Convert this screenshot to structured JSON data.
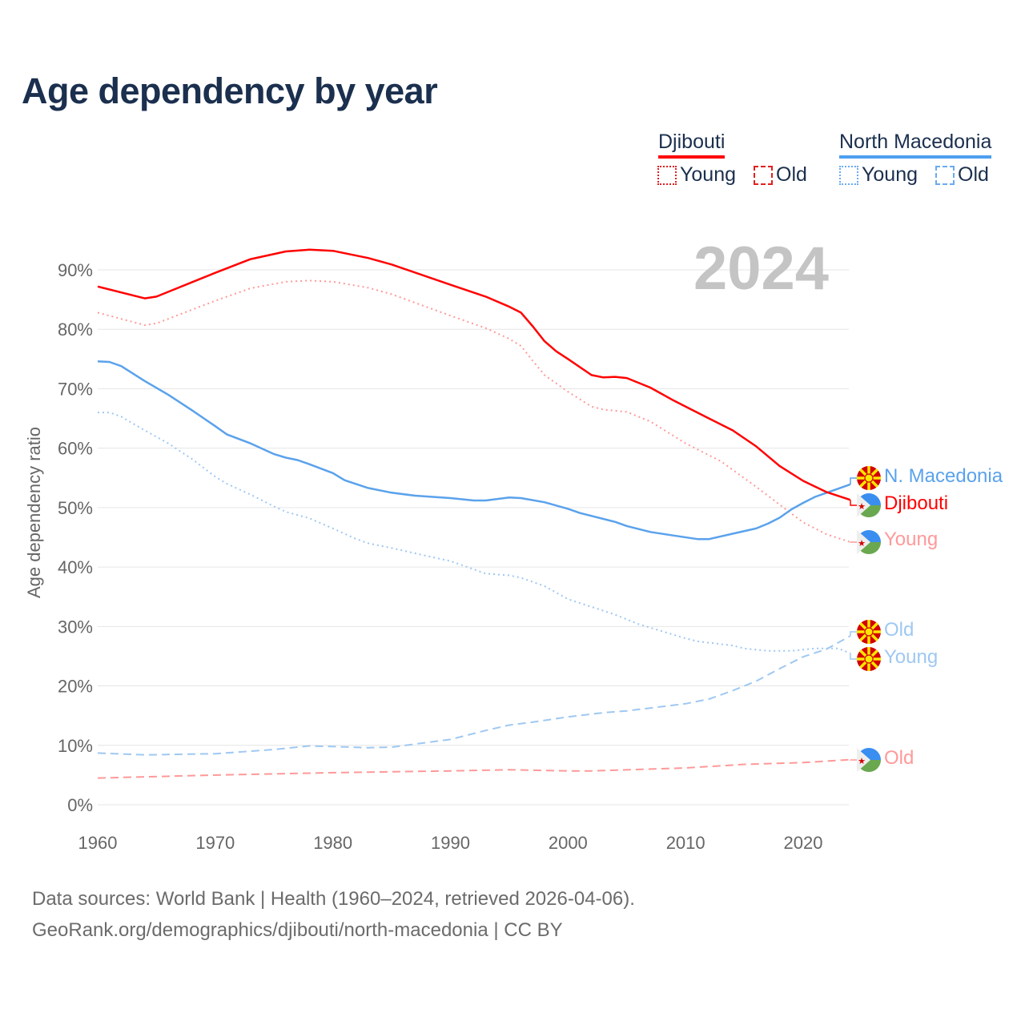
{
  "title": "Age dependency by year",
  "year_badge": "2024",
  "legend": {
    "groups": [
      {
        "name": "Djibouti",
        "color": "#ff0000",
        "young": "Young",
        "old": "Old"
      },
      {
        "name": "North Macedonia",
        "color": "#4e9ff0",
        "young": "Young",
        "old": "Old"
      }
    ]
  },
  "end_labels": {
    "nmk_total": "N. Macedonia",
    "dji_total": "Djibouti",
    "dji_young": "Young",
    "nmk_old": "Old",
    "nmk_young": "Young",
    "dji_old": "Old"
  },
  "source_line1": "Data sources: World Bank | Health (1960–2024, retrieved 2026-04-06).",
  "source_line2": "GeoRank.org/demographics/djibouti/north-macedonia | CC BY",
  "chart_data": {
    "type": "line",
    "title": "Age dependency by year",
    "xlabel": "",
    "ylabel": "Age dependency ratio",
    "xlim": [
      1960,
      2024
    ],
    "ylim": [
      0,
      90
    ],
    "xticks": [
      "1960",
      "1970",
      "1980",
      "1990",
      "2000",
      "2010",
      "2020"
    ],
    "yticks": [
      "0%",
      "10%",
      "20%",
      "30%",
      "40%",
      "50%",
      "60%",
      "70%",
      "80%",
      "90%"
    ],
    "grid": true,
    "legend": "top-right",
    "series": [
      {
        "name": "Djibouti",
        "key": "dji_total",
        "color": "#ff0000",
        "style": "solid",
        "points": [
          [
            1960,
            87.2
          ],
          [
            1964,
            85.2
          ],
          [
            1965,
            85.5
          ],
          [
            1970,
            89.5
          ],
          [
            1973,
            91.8
          ],
          [
            1976,
            93.1
          ],
          [
            1978,
            93.4
          ],
          [
            1980,
            93.2
          ],
          [
            1983,
            92.0
          ],
          [
            1985,
            90.9
          ],
          [
            1990,
            87.5
          ],
          [
            1993,
            85.5
          ],
          [
            1995,
            83.8
          ],
          [
            1996,
            82.8
          ],
          [
            1997,
            80.5
          ],
          [
            1998,
            78
          ],
          [
            1999,
            76.3
          ],
          [
            2000,
            75
          ],
          [
            2002,
            72.3
          ],
          [
            2003,
            71.9
          ],
          [
            2004,
            72.0
          ],
          [
            2005,
            71.8
          ],
          [
            2007,
            70.2
          ],
          [
            2009,
            68
          ],
          [
            2012,
            65
          ],
          [
            2014,
            63
          ],
          [
            2016,
            60.3
          ],
          [
            2018,
            57
          ],
          [
            2020,
            54.5
          ],
          [
            2022,
            52.6
          ],
          [
            2024,
            51.3
          ]
        ]
      },
      {
        "name": "Djibouti Young",
        "key": "dji_young",
        "color": "#ff9999",
        "style": "dotted",
        "points": [
          [
            1960,
            82.8
          ],
          [
            1964,
            80.7
          ],
          [
            1965,
            81
          ],
          [
            1970,
            84.8
          ],
          [
            1973,
            86.9
          ],
          [
            1976,
            88
          ],
          [
            1978,
            88.2
          ],
          [
            1980,
            88
          ],
          [
            1983,
            87
          ],
          [
            1985,
            85.9
          ],
          [
            1990,
            82.3
          ],
          [
            1993,
            80.2
          ],
          [
            1995,
            78.4
          ],
          [
            1996,
            77.2
          ],
          [
            1997,
            74.7
          ],
          [
            1998,
            72.3
          ],
          [
            2000,
            69.5
          ],
          [
            2002,
            67
          ],
          [
            2003,
            66.5
          ],
          [
            2005,
            66.1
          ],
          [
            2007,
            64.5
          ],
          [
            2010,
            60.8
          ],
          [
            2013,
            57.8
          ],
          [
            2016,
            53.5
          ],
          [
            2018,
            50.5
          ],
          [
            2020,
            47.5
          ],
          [
            2022,
            45.5
          ],
          [
            2024,
            44.2
          ]
        ]
      },
      {
        "name": "Djibouti Old",
        "key": "dji_old",
        "color": "#ff9999",
        "style": "dashed",
        "points": [
          [
            1960,
            4.5
          ],
          [
            1970,
            5.0
          ],
          [
            1980,
            5.4
          ],
          [
            1990,
            5.7
          ],
          [
            1995,
            5.9
          ],
          [
            2000,
            5.7
          ],
          [
            2002,
            5.7
          ],
          [
            2010,
            6.2
          ],
          [
            2015,
            6.8
          ],
          [
            2020,
            7.1
          ],
          [
            2024,
            7.6
          ]
        ]
      },
      {
        "name": "North Macedonia",
        "key": "nmk_total",
        "color": "#5aa2ec",
        "style": "solid",
        "points": [
          [
            1960,
            74.6
          ],
          [
            1961,
            74.5
          ],
          [
            1962,
            73.8
          ],
          [
            1964,
            71.3
          ],
          [
            1966,
            69
          ],
          [
            1968,
            66.4
          ],
          [
            1970,
            63.7
          ],
          [
            1971,
            62.3
          ],
          [
            1973,
            60.8
          ],
          [
            1975,
            59
          ],
          [
            1976,
            58.4
          ],
          [
            1977,
            58
          ],
          [
            1978,
            57.3
          ],
          [
            1980,
            55.8
          ],
          [
            1981,
            54.6
          ],
          [
            1983,
            53.3
          ],
          [
            1985,
            52.5
          ],
          [
            1987,
            52.0
          ],
          [
            1990,
            51.6
          ],
          [
            1992,
            51.2
          ],
          [
            1993,
            51.2
          ],
          [
            1995,
            51.7
          ],
          [
            1996,
            51.6
          ],
          [
            1998,
            50.9
          ],
          [
            2000,
            49.8
          ],
          [
            2001,
            49.1
          ],
          [
            2004,
            47.6
          ],
          [
            2005,
            46.9
          ],
          [
            2007,
            45.9
          ],
          [
            2009,
            45.3
          ],
          [
            2011,
            44.7
          ],
          [
            2012,
            44.7
          ],
          [
            2014,
            45.6
          ],
          [
            2016,
            46.5
          ],
          [
            2017,
            47.3
          ],
          [
            2018,
            48.3
          ],
          [
            2019,
            49.7
          ],
          [
            2020,
            50.8
          ],
          [
            2021,
            51.8
          ],
          [
            2022,
            52.5
          ],
          [
            2024,
            53.9
          ]
        ]
      },
      {
        "name": "North Macedonia Young",
        "key": "nmk_young",
        "color": "#9fc8f2",
        "style": "dotted",
        "points": [
          [
            1960,
            66
          ],
          [
            1961,
            66
          ],
          [
            1962,
            65.3
          ],
          [
            1964,
            63
          ],
          [
            1966,
            60.8
          ],
          [
            1968,
            58.2
          ],
          [
            1970,
            55.2
          ],
          [
            1971,
            54
          ],
          [
            1973,
            52.2
          ],
          [
            1975,
            50.2
          ],
          [
            1976,
            49.3
          ],
          [
            1978,
            48.2
          ],
          [
            1980,
            46.5
          ],
          [
            1982,
            44.7
          ],
          [
            1983,
            44
          ],
          [
            1985,
            43.2
          ],
          [
            1987,
            42.3
          ],
          [
            1990,
            41
          ],
          [
            1992,
            39.6
          ],
          [
            1993,
            38.9
          ],
          [
            1995,
            38.6
          ],
          [
            1996,
            38.2
          ],
          [
            1998,
            36.8
          ],
          [
            2000,
            34.6
          ],
          [
            2002,
            33.3
          ],
          [
            2004,
            32
          ],
          [
            2006,
            30.4
          ],
          [
            2008,
            29.2
          ],
          [
            2010,
            28
          ],
          [
            2011,
            27.5
          ],
          [
            2014,
            26.8
          ],
          [
            2015,
            26.3
          ],
          [
            2017,
            25.9
          ],
          [
            2019,
            25.9
          ],
          [
            2021,
            26.3
          ],
          [
            2023,
            26.3
          ],
          [
            2024,
            25.5
          ]
        ]
      },
      {
        "name": "North Macedonia Old",
        "key": "nmk_old",
        "color": "#9fc8f2",
        "style": "dashed",
        "points": [
          [
            1960,
            8.7
          ],
          [
            1964,
            8.4
          ],
          [
            1970,
            8.6
          ],
          [
            1975,
            9.3
          ],
          [
            1978,
            9.9
          ],
          [
            1980,
            9.8
          ],
          [
            1983,
            9.6
          ],
          [
            1985,
            9.7
          ],
          [
            1990,
            11.0
          ],
          [
            1993,
            12.5
          ],
          [
            1995,
            13.4
          ],
          [
            1997,
            13.9
          ],
          [
            2000,
            14.8
          ],
          [
            2003,
            15.5
          ],
          [
            2005,
            15.8
          ],
          [
            2010,
            17.0
          ],
          [
            2012,
            17.8
          ],
          [
            2014,
            19.2
          ],
          [
            2016,
            20.8
          ],
          [
            2018,
            22.9
          ],
          [
            2020,
            24.9
          ],
          [
            2022,
            26.2
          ],
          [
            2024,
            28.4
          ]
        ]
      }
    ]
  }
}
